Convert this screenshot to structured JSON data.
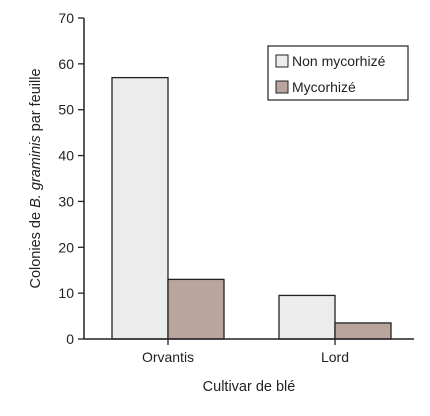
{
  "chart_data": {
    "type": "bar",
    "categories": [
      "Orvantis",
      "Lord"
    ],
    "series": [
      {
        "name": "Non mycorhizé",
        "values": [
          57,
          9.5
        ],
        "color": "#ececec"
      },
      {
        "name": "Mycorhizé",
        "values": [
          13,
          3.5
        ],
        "color": "#b9a59d"
      }
    ],
    "xlabel": "Cultivar de blé",
    "ylabel": {
      "prefix": "Colonies de ",
      "italic": "B. graminis",
      "suffix": " par feuille"
    },
    "ylim": [
      0,
      70
    ],
    "yticks": [
      "0",
      "10",
      "20",
      "30",
      "40",
      "50",
      "60",
      "70"
    ],
    "legend": {
      "placement": "top-right",
      "items": [
        "Non mycorhizé",
        "Mycorhizé"
      ]
    },
    "grid": false
  }
}
